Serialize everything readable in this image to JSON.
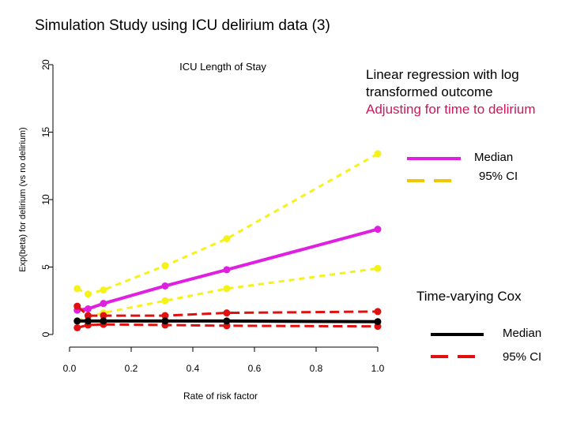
{
  "slide_title": "Simulation Study using ICU delirium data (3)",
  "annotations": {
    "lr_line1": "Linear regression with log",
    "lr_line2": "transformed outcome",
    "lr_line3": "Adjusting for time to delirium",
    "cox": "Time-varying Cox"
  },
  "legends": {
    "lr_median": "Median",
    "lr_ci": "95% CI",
    "cox_median": "Median",
    "cox_ci": "95% CI"
  },
  "colors": {
    "lr_median": "#e020e0",
    "lr_ci": "#f5f21a",
    "cox_median": "#000000",
    "cox_ci": "#e01010",
    "annotation_highlight": "#d4145a",
    "lr_legend_ci": "#f0c800"
  },
  "chart_data": {
    "type": "line",
    "title": "ICU Length of Stay",
    "xlabel": "Rate of risk factor",
    "ylabel": "Exp(beta) for delirium (vs no delirium)",
    "xlim": [
      0,
      1.0
    ],
    "ylim": [
      0,
      20
    ],
    "xticks": [
      "0.0",
      "0.2",
      "0.4",
      "0.6",
      "0.8",
      "1.0"
    ],
    "yticks": [
      "0",
      "5",
      "10",
      "15",
      "20"
    ],
    "x": [
      0.025,
      0.06,
      0.11,
      0.31,
      0.51,
      1.0
    ],
    "series": [
      {
        "group": "lr",
        "role": "median",
        "values": [
          1.8,
          1.9,
          2.3,
          3.6,
          4.8,
          7.8
        ]
      },
      {
        "group": "lr",
        "role": "ci_upper",
        "values": [
          3.4,
          3.0,
          3.3,
          5.1,
          7.1,
          13.4
        ]
      },
      {
        "group": "lr",
        "role": "ci_lower",
        "values": [
          1.0,
          1.3,
          1.6,
          2.5,
          3.4,
          4.9
        ]
      },
      {
        "group": "cox",
        "role": "median",
        "values": [
          1.0,
          1.0,
          1.0,
          1.0,
          1.0,
          0.95
        ]
      },
      {
        "group": "cox",
        "role": "ci_upper",
        "values": [
          2.1,
          1.4,
          1.4,
          1.4,
          1.6,
          1.7
        ]
      },
      {
        "group": "cox",
        "role": "ci_lower",
        "values": [
          0.5,
          0.7,
          0.75,
          0.7,
          0.65,
          0.6
        ]
      }
    ]
  }
}
